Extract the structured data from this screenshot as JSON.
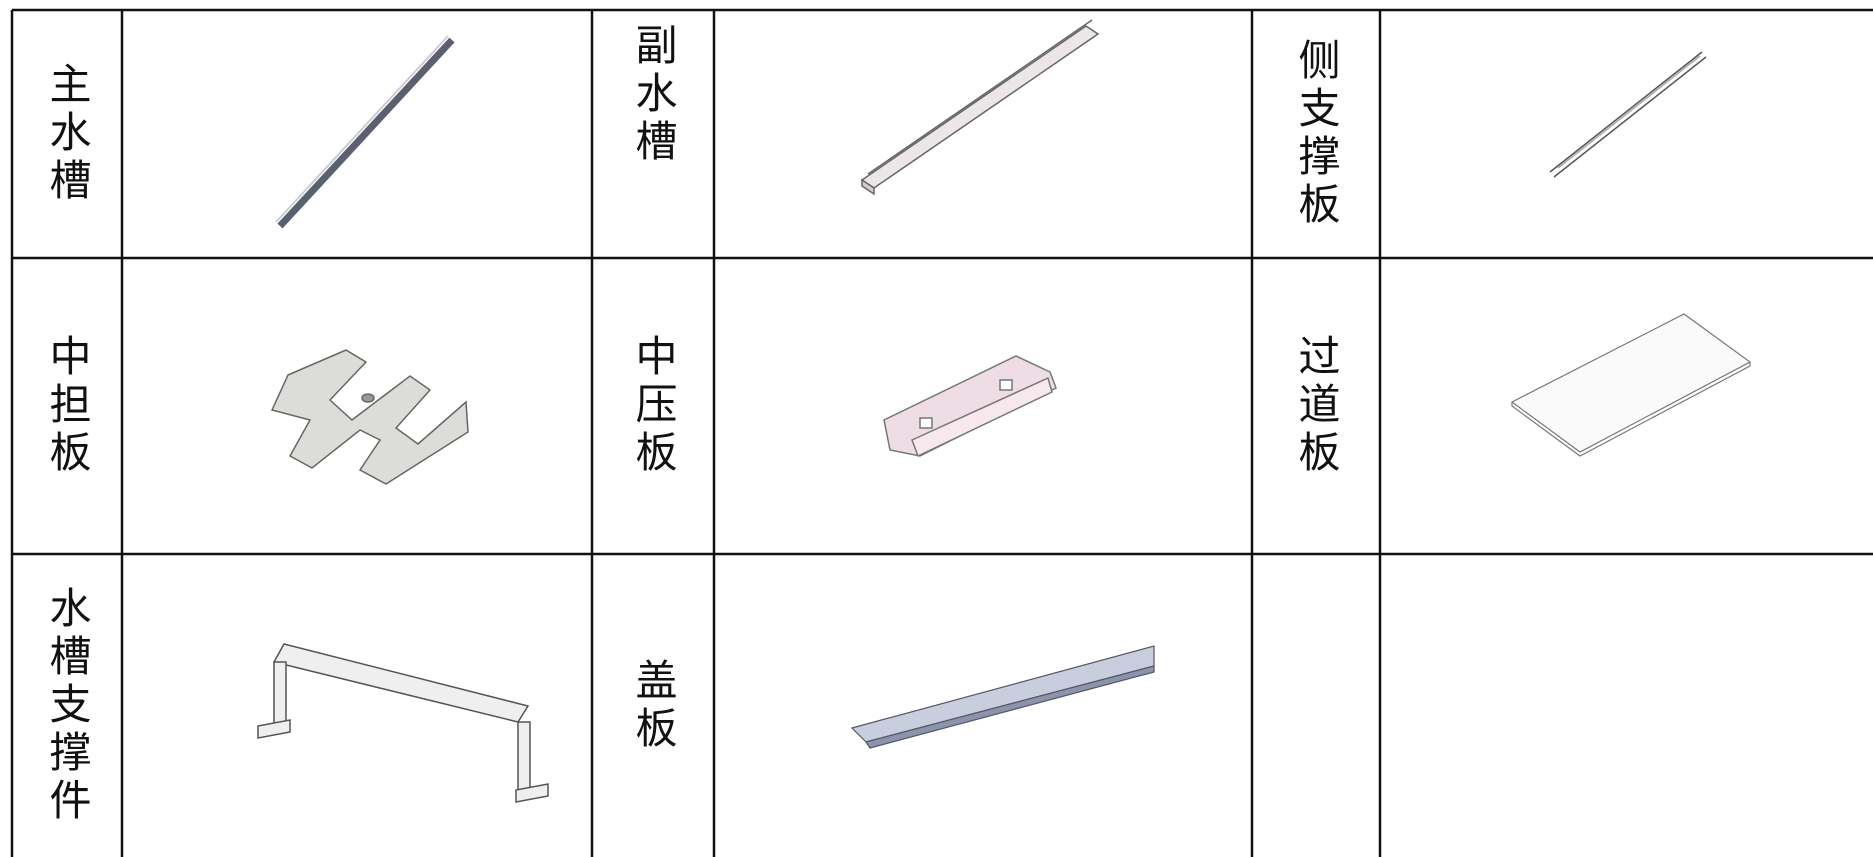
{
  "table": {
    "rows": [
      [
        "主水槽",
        "副水槽",
        "侧支撑板"
      ],
      [
        "中担板",
        "中压板",
        "过道板"
      ],
      [
        "水槽支撑件",
        "盖板"
      ]
    ]
  }
}
